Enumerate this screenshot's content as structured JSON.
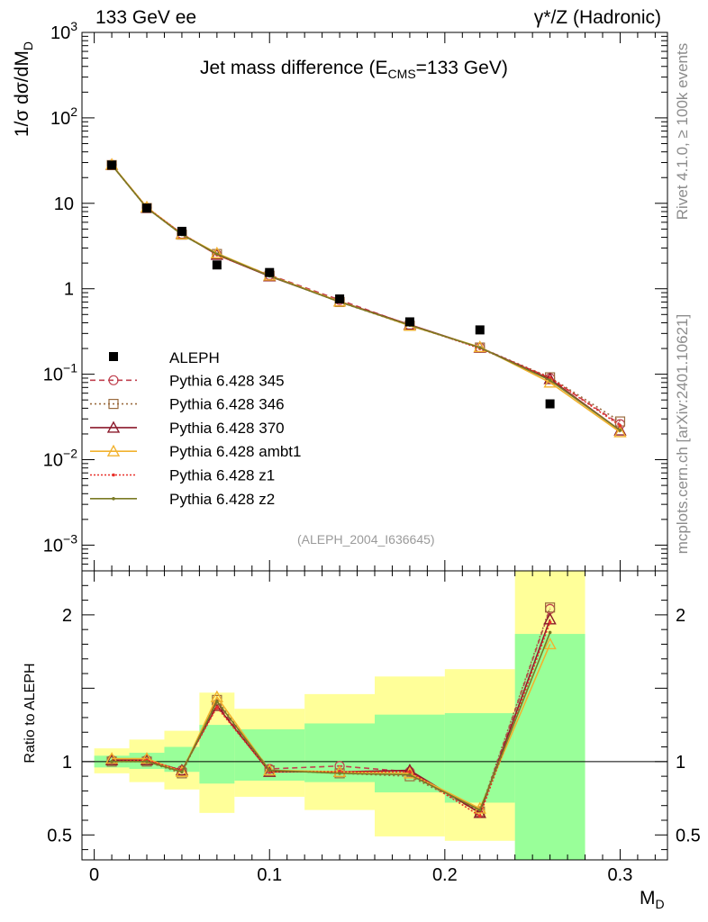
{
  "header": {
    "left": "133 GeV ee",
    "right": "γ*/Z (Hadronic)"
  },
  "side_text": {
    "top": "Rivet 4.1.0, ≥ 100k events",
    "bottom": "mcplots.cern.ch [arXiv:2401.10621]"
  },
  "analysis_id": "(ALEPH_2004_I636645)",
  "chart_data": {
    "type": "line",
    "title": "Jet mass difference (E_CMS=133 GeV)",
    "title_main": "Jet mass difference (E",
    "title_sub": "CMS",
    "title_end": "=133 GeV)",
    "xlabel": "M_D",
    "xlabel_main": "M",
    "xlabel_sub": "D",
    "ylabel": "1/σ dσ/dM_D",
    "ylabel_main": "1/σ  dσ/dM",
    "ylabel_sub": "D",
    "ratio_ylabel": "Ratio to ALEPH",
    "xlim": [
      -0.007,
      0.327
    ],
    "ylim": [
      0.0005,
      1000
    ],
    "ratio_ylim": [
      0.33,
      2.3
    ],
    "x_ticks": [
      "0",
      "0.1",
      "0.2",
      "0.3"
    ],
    "x_tick_values": [
      0,
      0.1,
      0.2,
      0.3
    ],
    "y_ticks": [
      {
        "value": 1000,
        "base": "10",
        "exp": "3"
      },
      {
        "value": 100,
        "base": "10",
        "exp": "2"
      },
      {
        "value": 10,
        "base": "10",
        "exp": ""
      },
      {
        "value": 1,
        "base": "1",
        "exp": ""
      },
      {
        "value": 0.1,
        "base": "10",
        "exp": "−1"
      },
      {
        "value": 0.01,
        "base": "10",
        "exp": "−2"
      },
      {
        "value": 0.001,
        "base": "10",
        "exp": "−3"
      }
    ],
    "ratio_ticks": [
      {
        "value": 0.5,
        "label": "0.5"
      },
      {
        "value": 1,
        "label": "1"
      },
      {
        "value": 2,
        "label": "2"
      }
    ],
    "data": {
      "name": "ALEPH",
      "x": [
        0.01,
        0.03,
        0.05,
        0.07,
        0.1,
        0.14,
        0.18,
        0.22,
        0.26
      ],
      "y": [
        28.0,
        8.8,
        4.7,
        1.9,
        1.55,
        0.76,
        0.41,
        0.33,
        0.045
      ],
      "xerr": [
        0.01,
        0.01,
        0.01,
        0.01,
        0.02,
        0.02,
        0.02,
        0.02,
        0.02
      ]
    },
    "bands": {
      "x_low": [
        0.0,
        0.02,
        0.04,
        0.06,
        0.08,
        0.12,
        0.16,
        0.2,
        0.24
      ],
      "x_high": [
        0.02,
        0.04,
        0.06,
        0.08,
        0.12,
        0.16,
        0.2,
        0.24,
        0.28
      ],
      "green_low": [
        0.96,
        0.95,
        0.93,
        0.85,
        0.87,
        0.86,
        0.79,
        0.72,
        0.33
      ],
      "green_high": [
        1.04,
        1.06,
        1.1,
        1.25,
        1.22,
        1.26,
        1.32,
        1.33,
        1.87
      ],
      "yellow_low": [
        0.92,
        0.86,
        0.81,
        0.65,
        0.76,
        0.67,
        0.49,
        0.46,
        0.33
      ],
      "yellow_high": [
        1.09,
        1.15,
        1.21,
        1.47,
        1.36,
        1.46,
        1.58,
        1.63,
        2.3
      ],
      "green_color": "#99ff99",
      "yellow_color": "#ffff99"
    },
    "series": [
      {
        "name": "Pythia 6.428 345",
        "color": "#c0414f",
        "dash": "6,4",
        "marker": "circle",
        "x": [
          0.01,
          0.03,
          0.05,
          0.07,
          0.1,
          0.14,
          0.18,
          0.22,
          0.26,
          0.3
        ],
        "y": [
          28.3,
          8.9,
          4.4,
          2.5,
          1.45,
          0.74,
          0.375,
          0.205,
          0.09,
          0.026
        ],
        "ratio": [
          1.01,
          1.01,
          0.94,
          1.39,
          0.95,
          0.97,
          0.93,
          0.65,
          2.04
        ]
      },
      {
        "name": "Pythia 6.428 346",
        "color": "#9a6b3e",
        "dash": "2,3",
        "marker": "square",
        "x": [
          0.01,
          0.03,
          0.05,
          0.07,
          0.1,
          0.14,
          0.18,
          0.22,
          0.26,
          0.3
        ],
        "y": [
          28.0,
          8.8,
          4.3,
          2.55,
          1.42,
          0.7,
          0.37,
          0.205,
          0.092,
          0.028
        ],
        "ratio": [
          1.0,
          1.0,
          0.92,
          1.42,
          0.94,
          0.92,
          0.9,
          0.66,
          2.05
        ]
      },
      {
        "name": "Pythia 6.428 370",
        "color": "#8b1a2b",
        "dash": "",
        "marker": "triangle",
        "x": [
          0.01,
          0.03,
          0.05,
          0.07,
          0.1,
          0.14,
          0.18,
          0.22,
          0.26,
          0.3
        ],
        "y": [
          28.2,
          8.9,
          4.4,
          2.5,
          1.4,
          0.71,
          0.38,
          0.205,
          0.088,
          0.022
        ],
        "ratio": [
          1.01,
          1.01,
          0.94,
          1.38,
          0.93,
          0.93,
          0.94,
          0.65,
          1.97
        ]
      },
      {
        "name": "Pythia 6.428 ambt1",
        "color": "#f2b22e",
        "dash": "",
        "marker": "triangle",
        "x": [
          0.01,
          0.03,
          0.05,
          0.07,
          0.1,
          0.14,
          0.18,
          0.22,
          0.26,
          0.3
        ],
        "y": [
          28.4,
          9.0,
          4.35,
          2.6,
          1.43,
          0.71,
          0.37,
          0.208,
          0.08,
          0.021
        ],
        "ratio": [
          1.02,
          1.02,
          0.93,
          1.44,
          0.94,
          0.93,
          0.92,
          0.68,
          1.8
        ]
      },
      {
        "name": "Pythia 6.428 z1",
        "color": "#e8312a",
        "dash": "2,2",
        "marker": "dot",
        "x": [
          0.01,
          0.03,
          0.05,
          0.07,
          0.1,
          0.14,
          0.18,
          0.22,
          0.26,
          0.3
        ],
        "y": [
          28.0,
          8.9,
          4.4,
          2.5,
          1.42,
          0.7,
          0.38,
          0.2,
          0.091,
          0.025
        ],
        "ratio": [
          1.0,
          1.01,
          0.94,
          1.37,
          0.93,
          0.93,
          0.93,
          0.63,
          1.95
        ]
      },
      {
        "name": "Pythia 6.428 z2",
        "color": "#7a7a25",
        "dash": "",
        "marker": "dot",
        "x": [
          0.01,
          0.03,
          0.05,
          0.07,
          0.1,
          0.14,
          0.18,
          0.22,
          0.26,
          0.3
        ],
        "y": [
          28.1,
          8.8,
          4.3,
          2.55,
          1.41,
          0.7,
          0.375,
          0.205,
          0.085,
          0.022
        ],
        "ratio": [
          1.0,
          1.0,
          0.93,
          1.41,
          0.94,
          0.92,
          0.91,
          0.67,
          1.88
        ]
      }
    ]
  }
}
